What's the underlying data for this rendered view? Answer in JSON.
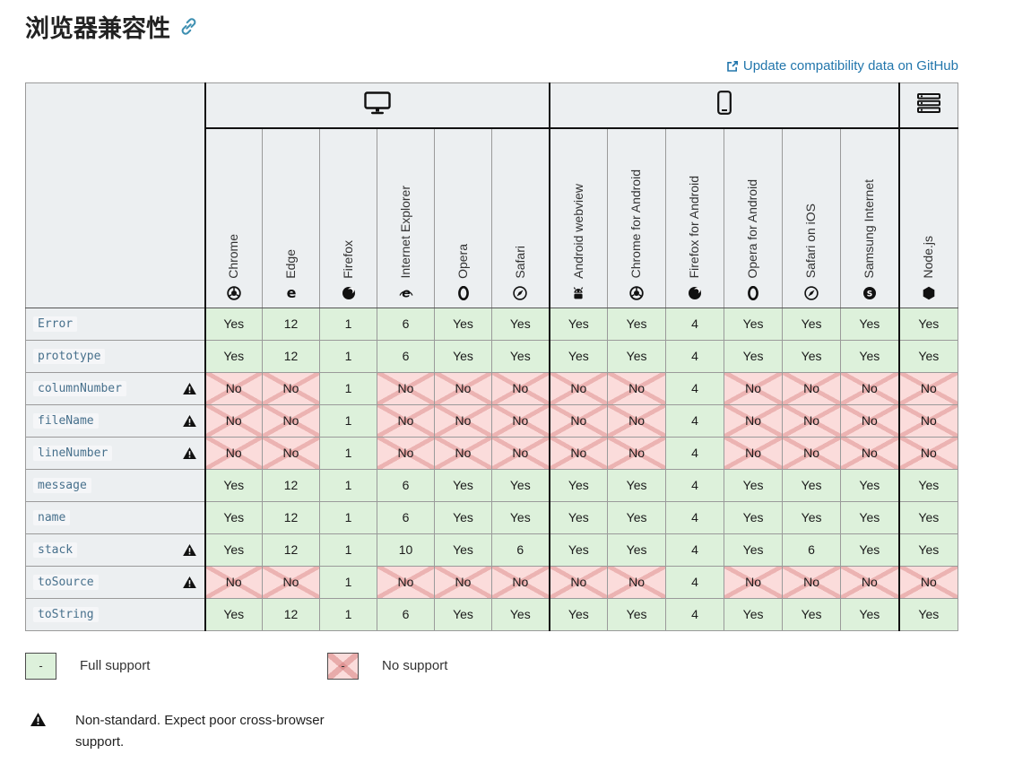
{
  "header": {
    "title": "浏览器兼容性",
    "anchor_icon": "link-icon"
  },
  "github_link": {
    "label": "Update compatibility data on GitHub",
    "icon": "external-link-icon"
  },
  "colors": {
    "full_support_bg": "#ddf1db",
    "no_support_bg": "#fbdcdb",
    "link_blue": "#2276ac",
    "header_bg": "#eceff1",
    "anchor_teal": "#3d8fb1"
  },
  "table": {
    "platforms": [
      {
        "id": "desktop",
        "icon": "desktop-icon",
        "colspan": 6
      },
      {
        "id": "mobile",
        "icon": "mobile-icon",
        "colspan": 6
      },
      {
        "id": "server",
        "icon": "server-icon",
        "colspan": 1
      }
    ],
    "browsers": [
      {
        "name": "Chrome",
        "icon": "chrome-icon"
      },
      {
        "name": "Edge",
        "icon": "edge-icon"
      },
      {
        "name": "Firefox",
        "icon": "firefox-icon"
      },
      {
        "name": "Internet Explorer",
        "icon": "ie-icon"
      },
      {
        "name": "Opera",
        "icon": "opera-icon"
      },
      {
        "name": "Safari",
        "icon": "safari-icon"
      },
      {
        "name": "Android webview",
        "icon": "android-icon"
      },
      {
        "name": "Chrome for Android",
        "icon": "chrome-icon"
      },
      {
        "name": "Firefox for Android",
        "icon": "firefox-icon"
      },
      {
        "name": "Opera for Android",
        "icon": "opera-icon"
      },
      {
        "name": "Safari on iOS",
        "icon": "safari-icon"
      },
      {
        "name": "Samsung Internet",
        "icon": "samsung-icon"
      },
      {
        "name": "Node.js",
        "icon": "nodejs-icon"
      }
    ],
    "rows": [
      {
        "feature": "Error",
        "nonstandard": false,
        "values": [
          "Yes",
          "12",
          "1",
          "6",
          "Yes",
          "Yes",
          "Yes",
          "Yes",
          "4",
          "Yes",
          "Yes",
          "Yes",
          "Yes"
        ],
        "support": [
          "full",
          "full",
          "full",
          "full",
          "full",
          "full",
          "full",
          "full",
          "full",
          "full",
          "full",
          "full",
          "full"
        ]
      },
      {
        "feature": "prototype",
        "nonstandard": false,
        "values": [
          "Yes",
          "12",
          "1",
          "6",
          "Yes",
          "Yes",
          "Yes",
          "Yes",
          "4",
          "Yes",
          "Yes",
          "Yes",
          "Yes"
        ],
        "support": [
          "full",
          "full",
          "full",
          "full",
          "full",
          "full",
          "full",
          "full",
          "full",
          "full",
          "full",
          "full",
          "full"
        ]
      },
      {
        "feature": "columnNumber",
        "nonstandard": true,
        "values": [
          "No",
          "No",
          "1",
          "No",
          "No",
          "No",
          "No",
          "No",
          "4",
          "No",
          "No",
          "No",
          "No"
        ],
        "support": [
          "no",
          "no",
          "full",
          "no",
          "no",
          "no",
          "no",
          "no",
          "full",
          "no",
          "no",
          "no",
          "no"
        ]
      },
      {
        "feature": "fileName",
        "nonstandard": true,
        "values": [
          "No",
          "No",
          "1",
          "No",
          "No",
          "No",
          "No",
          "No",
          "4",
          "No",
          "No",
          "No",
          "No"
        ],
        "support": [
          "no",
          "no",
          "full",
          "no",
          "no",
          "no",
          "no",
          "no",
          "full",
          "no",
          "no",
          "no",
          "no"
        ]
      },
      {
        "feature": "lineNumber",
        "nonstandard": true,
        "values": [
          "No",
          "No",
          "1",
          "No",
          "No",
          "No",
          "No",
          "No",
          "4",
          "No",
          "No",
          "No",
          "No"
        ],
        "support": [
          "no",
          "no",
          "full",
          "no",
          "no",
          "no",
          "no",
          "no",
          "full",
          "no",
          "no",
          "no",
          "no"
        ]
      },
      {
        "feature": "message",
        "nonstandard": false,
        "values": [
          "Yes",
          "12",
          "1",
          "6",
          "Yes",
          "Yes",
          "Yes",
          "Yes",
          "4",
          "Yes",
          "Yes",
          "Yes",
          "Yes"
        ],
        "support": [
          "full",
          "full",
          "full",
          "full",
          "full",
          "full",
          "full",
          "full",
          "full",
          "full",
          "full",
          "full",
          "full"
        ]
      },
      {
        "feature": "name",
        "nonstandard": false,
        "values": [
          "Yes",
          "12",
          "1",
          "6",
          "Yes",
          "Yes",
          "Yes",
          "Yes",
          "4",
          "Yes",
          "Yes",
          "Yes",
          "Yes"
        ],
        "support": [
          "full",
          "full",
          "full",
          "full",
          "full",
          "full",
          "full",
          "full",
          "full",
          "full",
          "full",
          "full",
          "full"
        ]
      },
      {
        "feature": "stack",
        "nonstandard": true,
        "values": [
          "Yes",
          "12",
          "1",
          "10",
          "Yes",
          "6",
          "Yes",
          "Yes",
          "4",
          "Yes",
          "6",
          "Yes",
          "Yes"
        ],
        "support": [
          "full",
          "full",
          "full",
          "full",
          "full",
          "full",
          "full",
          "full",
          "full",
          "full",
          "full",
          "full",
          "full"
        ]
      },
      {
        "feature": "toSource",
        "nonstandard": true,
        "values": [
          "No",
          "No",
          "1",
          "No",
          "No",
          "No",
          "No",
          "No",
          "4",
          "No",
          "No",
          "No",
          "No"
        ],
        "support": [
          "no",
          "no",
          "full",
          "no",
          "no",
          "no",
          "no",
          "no",
          "full",
          "no",
          "no",
          "no",
          "no"
        ]
      },
      {
        "feature": "toString",
        "nonstandard": false,
        "values": [
          "Yes",
          "12",
          "1",
          "6",
          "Yes",
          "Yes",
          "Yes",
          "Yes",
          "4",
          "Yes",
          "Yes",
          "Yes",
          "Yes"
        ],
        "support": [
          "full",
          "full",
          "full",
          "full",
          "full",
          "full",
          "full",
          "full",
          "full",
          "full",
          "full",
          "full",
          "full"
        ]
      }
    ]
  },
  "legend": {
    "full": {
      "swatch": "-",
      "label": "Full support"
    },
    "no": {
      "swatch": "-",
      "label": "No support"
    },
    "nonstandard": {
      "icon": "warning-icon",
      "label": "Non-standard. Expect poor cross-browser support."
    }
  }
}
